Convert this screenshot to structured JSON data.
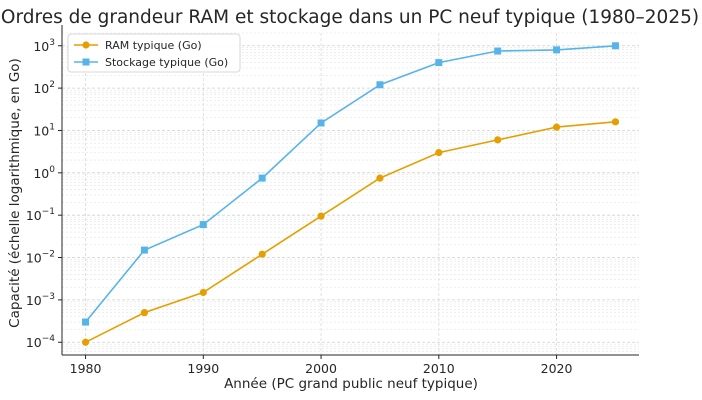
{
  "chart_data": {
    "type": "line",
    "title": "Ordres de grandeur RAM et stockage dans un PC neuf typique (1980–2025)",
    "xlabel": "Année (PC grand public neuf typique)",
    "ylabel": "Capacité (échelle logarithmique, en Go)",
    "x": [
      1980,
      1985,
      1990,
      1995,
      2000,
      2005,
      2010,
      2015,
      2020,
      2025
    ],
    "xlim": [
      1978,
      2027
    ],
    "xticks": [
      1980,
      1990,
      2000,
      2010,
      2020
    ],
    "yscale": "log",
    "ylim": [
      5e-05,
      2000
    ],
    "ytick_exponents": [
      -4,
      -3,
      -2,
      -1,
      0,
      1,
      2,
      3
    ],
    "grid": true,
    "legend_position": "top-left",
    "series": [
      {
        "name": "RAM typique (Go)",
        "color": "#E69F00",
        "marker": "circle",
        "values": [
          0.0001,
          0.0005,
          0.0015,
          0.012,
          0.095,
          0.75,
          3,
          6,
          12,
          16
        ]
      },
      {
        "name": "Stockage typique (Go)",
        "color": "#56B4E9",
        "marker": "square",
        "values": [
          0.0003,
          0.015,
          0.06,
          0.75,
          15,
          120,
          400,
          750,
          800,
          1000
        ]
      }
    ]
  }
}
